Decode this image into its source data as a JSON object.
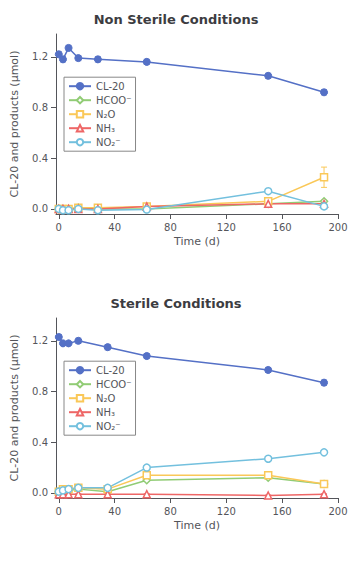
{
  "chart_data": [
    {
      "type": "line",
      "title": "Non Sterile Conditions",
      "xlabel": "Time (d)",
      "ylabel": "CL-20 and products (μmol)",
      "xlim": [
        -2,
        200
      ],
      "ylim": [
        -0.04,
        1.38
      ],
      "xticks": [
        0,
        40,
        80,
        120,
        160,
        200
      ],
      "yticks": [
        {
          "value": 0,
          "label": "0.0"
        },
        0.4,
        0.8,
        1.2
      ],
      "grid": false,
      "legend": "upper left",
      "series": [
        {
          "name": "CL-20",
          "marker": "filled circle",
          "line_style": "solid",
          "x": [
            0,
            3,
            7,
            14,
            28,
            63,
            150,
            190
          ],
          "values": [
            1.22,
            1.18,
            1.27,
            1.19,
            1.18,
            1.16,
            1.05,
            0.92
          ],
          "errors": [
            0.02,
            0.02,
            0.02,
            0.02,
            0.02,
            0.02,
            0.02,
            0.02
          ]
        },
        {
          "name": "HCOO⁻",
          "marker": "open diamond",
          "line_style": "solid",
          "x": [
            0,
            3,
            7,
            14,
            28,
            63,
            150,
            190
          ],
          "values": [
            0.0,
            0.0,
            0.0,
            0.01,
            0.0,
            0.0,
            0.04,
            0.06
          ],
          "errors": [
            0.003,
            0.003,
            0.003,
            0.003,
            0.003,
            0.003,
            0.008,
            0.008
          ]
        },
        {
          "name": "N₂O",
          "marker": "open square",
          "line_style": "solid",
          "x": [
            0,
            3,
            7,
            14,
            28,
            63,
            150,
            190
          ],
          "values": [
            0.0,
            0.0,
            0.0,
            0.01,
            0.01,
            0.02,
            0.06,
            0.25
          ],
          "errors": [
            0.003,
            0.003,
            0.003,
            0.003,
            0.003,
            0.003,
            0.008,
            0.08
          ]
        },
        {
          "name": "NH₃",
          "marker": "open triangle",
          "line_style": "solid",
          "x": [
            0,
            3,
            7,
            14,
            28,
            63,
            150,
            190
          ],
          "values": [
            0.0,
            0.0,
            0.0,
            0.0,
            0.0,
            0.02,
            0.04,
            0.04
          ],
          "errors": [
            0.003,
            0.003,
            0.003,
            0.003,
            0.003,
            0.003,
            0.005,
            0.005
          ]
        },
        {
          "name": "NO₂⁻",
          "marker": "open circle",
          "line_style": "solid",
          "x": [
            0,
            3,
            7,
            14,
            28,
            63,
            150,
            190
          ],
          "values": [
            0.0,
            -0.01,
            -0.01,
            0.0,
            -0.01,
            -0.005,
            0.14,
            0.02
          ],
          "errors": [
            0.003,
            0.003,
            0.003,
            0.003,
            0.003,
            0.003,
            0.015,
            0.005
          ]
        }
      ]
    },
    {
      "type": "line",
      "title": "Sterile Conditions",
      "xlabel": "Time (d)",
      "ylabel": "CL-20 and products (μmol)",
      "xlim": [
        -2,
        200
      ],
      "ylim": [
        -0.04,
        1.38
      ],
      "xticks": [
        0,
        40,
        80,
        120,
        160,
        200
      ],
      "yticks": [
        {
          "value": 0,
          "label": "0.0"
        },
        0.4,
        0.8,
        1.2
      ],
      "grid": false,
      "legend": "upper left",
      "series": [
        {
          "name": "CL-20",
          "marker": "filled circle",
          "line_style": "solid",
          "x": [
            0,
            3,
            7,
            14,
            35,
            63,
            150,
            190
          ],
          "values": [
            1.23,
            1.18,
            1.18,
            1.2,
            1.15,
            1.08,
            0.97,
            0.87
          ],
          "errors": [
            0.02,
            0.015,
            0.015,
            0.02,
            0.02,
            0.02,
            0.02,
            0.02
          ]
        },
        {
          "name": "HCOO⁻",
          "marker": "open diamond",
          "line_style": "solid",
          "x": [
            0,
            3,
            7,
            14,
            35,
            63,
            150,
            190
          ],
          "values": [
            0.01,
            0.02,
            0.02,
            0.03,
            0.01,
            0.1,
            0.12,
            0.07
          ],
          "errors": [
            0.003,
            0.003,
            0.003,
            0.003,
            0.003,
            0.008,
            0.008,
            0.008
          ]
        },
        {
          "name": "N₂O",
          "marker": "open square",
          "line_style": "solid",
          "x": [
            0,
            3,
            7,
            14,
            35,
            63,
            150,
            190
          ],
          "values": [
            0.01,
            0.03,
            0.03,
            0.04,
            0.03,
            0.14,
            0.14,
            0.07
          ],
          "errors": [
            0.003,
            0.003,
            0.003,
            0.003,
            0.003,
            0.04,
            0.008,
            0.008
          ]
        },
        {
          "name": "NH₃",
          "marker": "open triangle",
          "line_style": "solid",
          "x": [
            0,
            3,
            7,
            14,
            35,
            63,
            150,
            190
          ],
          "values": [
            -0.01,
            -0.01,
            -0.01,
            -0.01,
            -0.01,
            -0.01,
            -0.02,
            -0.01
          ],
          "errors": [
            0.003,
            0.003,
            0.003,
            0.003,
            0.003,
            0.003,
            0.003,
            0.003
          ]
        },
        {
          "name": "NO₂⁻",
          "marker": "open circle",
          "line_style": "solid",
          "x": [
            0,
            3,
            7,
            14,
            35,
            63,
            150,
            190
          ],
          "values": [
            0.01,
            0.02,
            0.03,
            0.04,
            0.04,
            0.2,
            0.27,
            0.32
          ],
          "errors": [
            0.003,
            0.003,
            0.003,
            0.003,
            0.003,
            0.008,
            0.008,
            0.015
          ]
        }
      ]
    }
  ]
}
